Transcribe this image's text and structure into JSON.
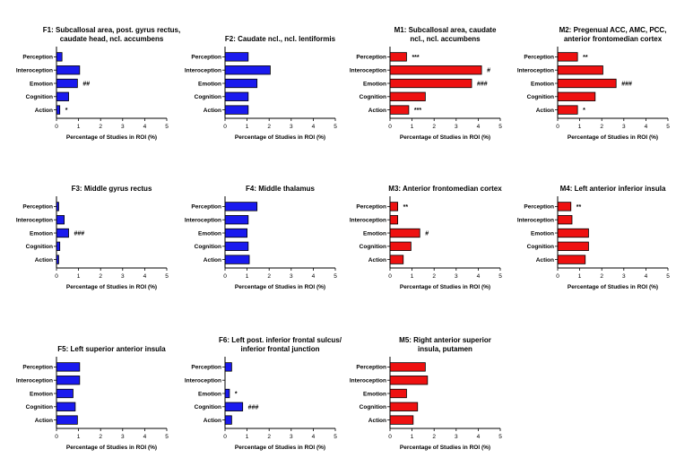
{
  "colors": {
    "functional": "#1a1aee",
    "meta": "#ee1111",
    "bar_stroke": "#000000"
  },
  "chart_data": [
    {
      "type": "bar",
      "orientation": "horizontal",
      "title": [
        "F1: Subcallosal area, post. gyrus rectus,",
        "caudate head, ncl. accumbens"
      ],
      "categories": [
        "Perception",
        "Interoception",
        "Emotion",
        "Cognition",
        "Action"
      ],
      "values": [
        0.25,
        1.05,
        0.95,
        0.55,
        0.15
      ],
      "annotations": [
        "",
        "",
        "##",
        "",
        "*"
      ],
      "xlabel": "Percentage of Studies in ROI (%)",
      "xlim": [
        0,
        5
      ],
      "xticks": [
        "0",
        "1",
        "2",
        "3",
        "4",
        "5"
      ],
      "color": "functional"
    },
    {
      "type": "bar",
      "orientation": "horizontal",
      "title": [
        "F2: Caudate ncl., ncl. lentiformis"
      ],
      "categories": [
        "Perception",
        "Interoception",
        "Emotion",
        "Cognition",
        "Action"
      ],
      "values": [
        1.05,
        2.05,
        1.45,
        1.05,
        1.05
      ],
      "annotations": [
        "",
        "",
        "",
        "",
        ""
      ],
      "xlabel": "Percentage of Studies in ROI (%)",
      "xlim": [
        0,
        5
      ],
      "xticks": [
        "0",
        "1",
        "2",
        "3",
        "4",
        "5"
      ],
      "color": "functional"
    },
    {
      "type": "bar",
      "orientation": "horizontal",
      "title": [
        "M1: Subcallosal area, caudate",
        "ncl., ncl. accumbens"
      ],
      "categories": [
        "Perception",
        "Interoception",
        "Emotion",
        "Cognition",
        "Action"
      ],
      "values": [
        0.75,
        4.15,
        3.7,
        1.6,
        0.85
      ],
      "annotations": [
        "***",
        "#",
        "###",
        "",
        "***"
      ],
      "xlabel": "Percentage of Studies in ROI (%)",
      "xlim": [
        0,
        5
      ],
      "xticks": [
        "0",
        "1",
        "2",
        "3",
        "4",
        "5"
      ],
      "color": "meta"
    },
    {
      "type": "bar",
      "orientation": "horizontal",
      "title": [
        "M2: Pregenual ACC, AMC, PCC,",
        "anterior frontomedian cortex"
      ],
      "categories": [
        "Perception",
        "Interoception",
        "Emotion",
        "Cognition",
        "Action"
      ],
      "values": [
        0.9,
        2.05,
        2.65,
        1.7,
        0.9
      ],
      "annotations": [
        "**",
        "",
        "###",
        "",
        "*"
      ],
      "xlabel": "Percentage of Studies in ROI (%)",
      "xlim": [
        0,
        5
      ],
      "xticks": [
        "0",
        "1",
        "2",
        "3",
        "4",
        "5"
      ],
      "color": "meta"
    },
    {
      "type": "bar",
      "orientation": "horizontal",
      "title": [
        "F3: Middle gyrus rectus"
      ],
      "categories": [
        "Perception",
        "Interoception",
        "Emotion",
        "Cognition",
        "Action"
      ],
      "values": [
        0.1,
        0.35,
        0.55,
        0.15,
        0.1
      ],
      "annotations": [
        "",
        "",
        "###",
        "",
        ""
      ],
      "xlabel": "Percentage of Studies in ROI (%)",
      "xlim": [
        0,
        5
      ],
      "xticks": [
        "0",
        "1",
        "2",
        "3",
        "4",
        "5"
      ],
      "color": "functional"
    },
    {
      "type": "bar",
      "orientation": "horizontal",
      "title": [
        "F4: Middle thalamus"
      ],
      "categories": [
        "Perception",
        "Interoception",
        "Emotion",
        "Cognition",
        "Action"
      ],
      "values": [
        1.45,
        1.05,
        1.0,
        1.05,
        1.1
      ],
      "annotations": [
        "",
        "",
        "",
        "",
        ""
      ],
      "xlabel": "Percentage of Studies in ROI (%)",
      "xlim": [
        0,
        5
      ],
      "xticks": [
        "0",
        "1",
        "2",
        "3",
        "4",
        "5"
      ],
      "color": "functional"
    },
    {
      "type": "bar",
      "orientation": "horizontal",
      "title": [
        "M3: Anterior frontomedian cortex"
      ],
      "categories": [
        "Perception",
        "Interoception",
        "Emotion",
        "Cognition",
        "Action"
      ],
      "values": [
        0.35,
        0.35,
        1.35,
        0.95,
        0.6
      ],
      "annotations": [
        "**",
        "",
        "#",
        "",
        ""
      ],
      "xlabel": "Percentage of Studies in ROI (%)",
      "xlim": [
        0,
        5
      ],
      "xticks": [
        "0",
        "1",
        "2",
        "3",
        "4",
        "5"
      ],
      "color": "meta"
    },
    {
      "type": "bar",
      "orientation": "horizontal",
      "title": [
        "M4: Left anterior inferior insula"
      ],
      "categories": [
        "Perception",
        "Interoception",
        "Emotion",
        "Cognition",
        "Action"
      ],
      "values": [
        0.6,
        0.65,
        1.4,
        1.4,
        1.25
      ],
      "annotations": [
        "**",
        "",
        "",
        "",
        ""
      ],
      "xlabel": "Percentage of Studies in ROI (%)",
      "xlim": [
        0,
        5
      ],
      "xticks": [
        "0",
        "1",
        "2",
        "3",
        "4",
        "5"
      ],
      "color": "meta"
    },
    {
      "type": "bar",
      "orientation": "horizontal",
      "title": [
        "F5: Left superior anterior insula"
      ],
      "categories": [
        "Perception",
        "Interoception",
        "Emotion",
        "Cognition",
        "Action"
      ],
      "values": [
        1.05,
        1.05,
        0.75,
        0.85,
        0.95
      ],
      "annotations": [
        "",
        "",
        "",
        "",
        ""
      ],
      "xlabel": "Percentage of Studies in ROI (%)",
      "xlim": [
        0,
        5
      ],
      "xticks": [
        "0",
        "1",
        "2",
        "3",
        "4",
        "5"
      ],
      "color": "functional"
    },
    {
      "type": "bar",
      "orientation": "horizontal",
      "title": [
        "F6: Left post. inferior frontal sulcus/",
        "inferior frontal junction"
      ],
      "categories": [
        "Perception",
        "Interoception",
        "Emotion",
        "Cognition",
        "Action"
      ],
      "values": [
        0.3,
        0.0,
        0.2,
        0.8,
        0.3
      ],
      "annotations": [
        "",
        "",
        "*",
        "###",
        ""
      ],
      "xlabel": "Percentage of Studies in ROI (%)",
      "xlim": [
        0,
        5
      ],
      "xticks": [
        "0",
        "1",
        "2",
        "3",
        "4",
        "5"
      ],
      "color": "functional"
    },
    {
      "type": "bar",
      "orientation": "horizontal",
      "title": [
        "M5: Right anterior superior",
        "insula, putamen"
      ],
      "categories": [
        "Perception",
        "Interoception",
        "Emotion",
        "Cognition",
        "Action"
      ],
      "values": [
        1.6,
        1.7,
        0.75,
        1.25,
        1.05
      ],
      "annotations": [
        "",
        "",
        "",
        "",
        ""
      ],
      "xlabel": "Percentage of Studies in ROI (%)",
      "xlim": [
        0,
        5
      ],
      "xticks": [
        "0",
        "1",
        "2",
        "3",
        "4",
        "5"
      ],
      "color": "meta"
    }
  ]
}
